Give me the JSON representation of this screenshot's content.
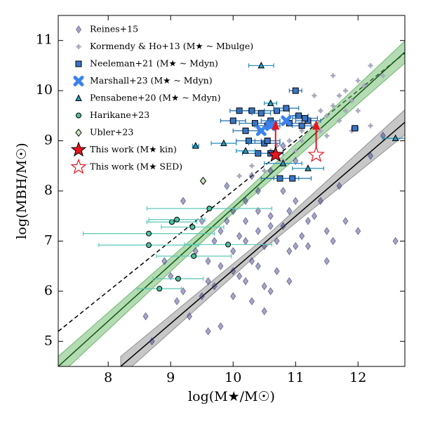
{
  "chart_data": {
    "type": "scatter",
    "xlabel": "log(M★/M☉)",
    "ylabel": "log(MBH/M☉)",
    "xlim": [
      7.2,
      12.75
    ],
    "ylim": [
      4.5,
      11.5
    ],
    "xticks": [
      8,
      9,
      10,
      11,
      12
    ],
    "yticks": [
      5,
      6,
      7,
      8,
      9,
      10,
      11
    ],
    "lines": [
      {
        "color": "#000000",
        "dash": true,
        "x": [
          7.2,
          12.75
        ],
        "values": [
          5.2,
          10.75
        ]
      },
      {
        "color": "#0a5a0a",
        "band_color": "#6ab86a",
        "x": [
          7.2,
          10.0,
          12.75
        ],
        "values": [
          4.5,
          7.66,
          10.77
        ],
        "lower": [
          4.3,
          7.56,
          10.55
        ],
        "upper": [
          4.7,
          7.76,
          10.99
        ]
      },
      {
        "color": "#000000",
        "band_color": "#909090",
        "x": [
          8.2,
          10.5,
          12.75
        ],
        "values": [
          4.5,
          6.96,
          9.37
        ],
        "lower": [
          4.3,
          6.86,
          9.12
        ],
        "upper": [
          4.7,
          7.06,
          9.62
        ]
      }
    ],
    "series": [
      {
        "name": "Reines+15",
        "marker": "diamond",
        "color": "#3a3a7a",
        "x": [
          9.6,
          9.8,
          10.0,
          10.2,
          10.4,
          10.6,
          10.8,
          11.0,
          9.9,
          10.1,
          10.3,
          10.5,
          10.7,
          10.9,
          11.1,
          11.3,
          11.5,
          9.5,
          9.3,
          8.6,
          9.0,
          9.7,
          10.2,
          10.4,
          10.6,
          10.8,
          11.0,
          10.0,
          9.8,
          10.3,
          10.5,
          10.0,
          9.4,
          9.6,
          10.9,
          11.2,
          11.4,
          11.6,
          10.1,
          10.4,
          10.7,
          9.2,
          9.1,
          8.9,
          10.6,
          10.2,
          11.8,
          12.0,
          10.8,
          10.3,
          9.9,
          9.5,
          9.2,
          8.7,
          9.8,
          10.5,
          11.0,
          11.5,
          10.9,
          10.0,
          10.6,
          10.2,
          9.7,
          11.2,
          10.4,
          9.6,
          12.6,
          12.4,
          11.7,
          12.2
        ],
        "values": [
          6.2,
          6.5,
          6.8,
          7.0,
          7.2,
          7.5,
          7.3,
          7.8,
          7.4,
          6.3,
          6.6,
          6.9,
          7.0,
          6.8,
          7.1,
          7.5,
          7.2,
          5.9,
          5.5,
          5.5,
          6.3,
          7.0,
          7.8,
          8.0,
          8.4,
          8.0,
          8.6,
          7.6,
          7.2,
          5.8,
          6.1,
          5.9,
          6.8,
          6.6,
          7.6,
          6.9,
          7.8,
          7.0,
          7.1,
          6.5,
          6.4,
          6.0,
          5.8,
          6.6,
          6.0,
          6.2,
          7.4,
          7.2,
          8.9,
          8.3,
          8.1,
          7.4,
          7.8,
          5.0,
          5.3,
          5.6,
          6.9,
          6.6,
          6.2,
          6.4,
          7.3,
          7.4,
          6.1,
          7.4,
          7.6,
          5.2,
          7.0,
          9.1,
          8.1,
          8.7
        ]
      },
      {
        "name": "Kormendy & Ho+13 (M★ ~ Mbulge)",
        "marker": "plus",
        "color": "#a8a8bc",
        "x": [
          10.1,
          10.3,
          10.5,
          10.7,
          10.9,
          11.0,
          11.1,
          11.2,
          11.3,
          11.4,
          11.5,
          11.6,
          11.7,
          11.8,
          11.9,
          12.0,
          12.1,
          12.2,
          12.4,
          11.5,
          11.7,
          11.8,
          11.9,
          12.0,
          11.6,
          11.3,
          10.8,
          11.1,
          11.4,
          12.2,
          10.6,
          11.0
        ],
        "values": [
          8.3,
          8.5,
          8.4,
          8.9,
          9.0,
          8.8,
          9.2,
          9.4,
          9.3,
          9.6,
          9.5,
          9.7,
          9.9,
          10.0,
          9.8,
          10.2,
          10.1,
          9.3,
          10.3,
          9.1,
          9.4,
          9.6,
          9.2,
          9.6,
          10.3,
          9.9,
          8.6,
          9.0,
          9.2,
          10.5,
          8.8,
          9.5
        ]
      },
      {
        "name": "Neeleman+21 (M★ ~ Mdyn)",
        "marker": "square",
        "color": "#3b75c4",
        "err_color": "#1f6fb0",
        "x": [
          11.0,
          10.1,
          10.3,
          10.45,
          10.7,
          10.85,
          11.05,
          11.2,
          10.0,
          10.2,
          10.35,
          10.55,
          10.6,
          10.9,
          11.1,
          11.15,
          11.95,
          10.25,
          10.5,
          10.4,
          10.6,
          10.75,
          10.95,
          10.55
        ],
        "values": [
          10.0,
          9.6,
          9.6,
          9.55,
          9.6,
          9.65,
          9.5,
          9.4,
          9.4,
          9.2,
          9.35,
          9.3,
          9.4,
          9.35,
          9.3,
          9.45,
          9.25,
          9.0,
          8.95,
          8.75,
          8.75,
          8.25,
          8.25,
          9.0
        ],
        "xerr": [
          0.1,
          0.15,
          0.2,
          0.15,
          0.2,
          0.2,
          0.15,
          0.2,
          0.2,
          0.2,
          0.25,
          0.2,
          0.15,
          0.2,
          0.15,
          0.2,
          0.05,
          0.2,
          0.25,
          0.25,
          0.2,
          0.3,
          0.3,
          0.2
        ]
      },
      {
        "name": "Marshall+23 (M★ ~ Mdyn)",
        "marker": "xcircle",
        "color": "#3b82f0",
        "x": [
          10.45,
          10.6,
          10.85
        ],
        "values": [
          9.2,
          9.3,
          9.4
        ]
      },
      {
        "name": "Pensabene+20 (M★ ~ Mdyn)",
        "marker": "triangle",
        "color": "#2a9ab8",
        "err_color": "#1f8fb8",
        "x": [
          10.45,
          9.4,
          9.85,
          10.2,
          10.6,
          10.8,
          11.2,
          12.6
        ],
        "values": [
          10.5,
          8.9,
          8.95,
          8.8,
          9.75,
          8.55,
          8.45,
          9.05
        ],
        "xerr": [
          0.2,
          0.05,
          0.2,
          0.15,
          0.1,
          0.3,
          0.25,
          0.2
        ]
      },
      {
        "name": "Harikane+23",
        "marker": "circle",
        "color": "#4fbf9f",
        "err_color": "#5cc8b8",
        "x": [
          8.65,
          8.65,
          8.82,
          9.02,
          9.1,
          9.12,
          9.35,
          9.37,
          9.62,
          9.92
        ],
        "values": [
          7.15,
          6.92,
          6.05,
          7.38,
          7.43,
          6.25,
          7.28,
          6.7,
          7.65,
          6.93
        ],
        "xerr": [
          1.05,
          0.8,
          0.35,
          0.4,
          0.45,
          0.4,
          0.5,
          0.6,
          1.0,
          0.7
        ]
      },
      {
        "name": "Ubler+23",
        "marker": "diamond-open",
        "color": "#c8e6c0",
        "x": [
          9.52
        ],
        "values": [
          8.2
        ]
      },
      {
        "name": "This work (M★ kin)",
        "marker": "star",
        "color": "#e8141c",
        "arrow": true,
        "x": [
          10.68
        ],
        "values": [
          8.72
        ]
      },
      {
        "name": "This work (M★ SED)",
        "marker": "star-open",
        "color": "#e8141c",
        "arrow": true,
        "x": [
          11.33
        ],
        "values": [
          8.72
        ]
      }
    ]
  }
}
